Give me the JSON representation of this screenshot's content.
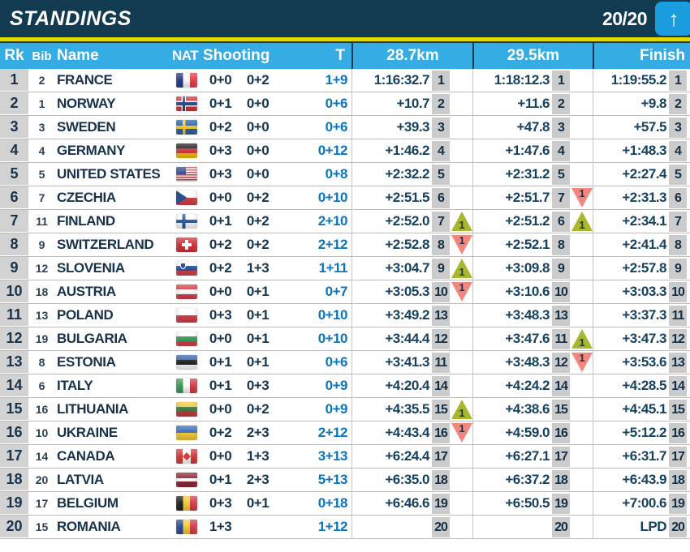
{
  "header": {
    "title": "STANDINGS",
    "progress": "20/20",
    "scroll_button_icon": "up-arrow"
  },
  "columns": {
    "rk": "Rk",
    "bib": "Bib",
    "name": "Name",
    "nat": "NAT",
    "shooting": "Shooting",
    "total": "T",
    "cp1": "28.7km",
    "cp2": "29.5km",
    "finish": "Finish"
  },
  "colors": {
    "topbar": "#123A50",
    "accent_yellow": "#DFDB00",
    "header_blue": "#35ACE4",
    "button_blue": "#1B9CDE",
    "rank_cell_gray": "#D2D2D2",
    "badge_gray": "#CBCBCB",
    "text_navy": "#17324A",
    "total_blue": "#0B76BC",
    "up_arrow_green": "#A9B72E",
    "down_arrow_red": "#F4867E"
  },
  "rows": [
    {
      "rank": "1",
      "bib": "2",
      "name": "FRANCE",
      "flag": "fr",
      "shoot1": "0+0",
      "shoot2": "0+2",
      "total": "1+9",
      "cp1": {
        "time": "1:16:32.7",
        "rank": "1",
        "change": null
      },
      "cp2": {
        "time": "1:18:12.3",
        "rank": "1",
        "change": null
      },
      "fin": {
        "time": "1:19:55.2",
        "rank": "1"
      }
    },
    {
      "rank": "2",
      "bib": "1",
      "name": "NORWAY",
      "flag": "no",
      "shoot1": "0+1",
      "shoot2": "0+0",
      "total": "0+6",
      "cp1": {
        "time": "+10.7",
        "rank": "2",
        "change": null
      },
      "cp2": {
        "time": "+11.6",
        "rank": "2",
        "change": null
      },
      "fin": {
        "time": "+9.8",
        "rank": "2"
      }
    },
    {
      "rank": "3",
      "bib": "3",
      "name": "SWEDEN",
      "flag": "se",
      "shoot1": "0+2",
      "shoot2": "0+0",
      "total": "0+6",
      "cp1": {
        "time": "+39.3",
        "rank": "3",
        "change": null
      },
      "cp2": {
        "time": "+47.8",
        "rank": "3",
        "change": null
      },
      "fin": {
        "time": "+57.5",
        "rank": "3"
      }
    },
    {
      "rank": "4",
      "bib": "4",
      "name": "GERMANY",
      "flag": "de",
      "shoot1": "0+3",
      "shoot2": "0+0",
      "total": "0+12",
      "cp1": {
        "time": "+1:46.2",
        "rank": "4",
        "change": null
      },
      "cp2": {
        "time": "+1:47.6",
        "rank": "4",
        "change": null
      },
      "fin": {
        "time": "+1:48.3",
        "rank": "4"
      }
    },
    {
      "rank": "5",
      "bib": "5",
      "name": "UNITED STATES",
      "flag": "us",
      "shoot1": "0+3",
      "shoot2": "0+0",
      "total": "0+8",
      "cp1": {
        "time": "+2:32.2",
        "rank": "5",
        "change": null
      },
      "cp2": {
        "time": "+2:31.2",
        "rank": "5",
        "change": null
      },
      "fin": {
        "time": "+2:27.4",
        "rank": "5"
      }
    },
    {
      "rank": "6",
      "bib": "7",
      "name": "CZECHIA",
      "flag": "cz",
      "shoot1": "0+0",
      "shoot2": "0+2",
      "total": "0+10",
      "cp1": {
        "time": "+2:51.5",
        "rank": "6",
        "change": null
      },
      "cp2": {
        "time": "+2:51.7",
        "rank": "7",
        "change": {
          "dir": "down",
          "n": "1"
        }
      },
      "fin": {
        "time": "+2:31.3",
        "rank": "6"
      }
    },
    {
      "rank": "7",
      "bib": "11",
      "name": "FINLAND",
      "flag": "fi",
      "shoot1": "0+1",
      "shoot2": "0+2",
      "total": "2+10",
      "cp1": {
        "time": "+2:52.0",
        "rank": "7",
        "change": {
          "dir": "up",
          "n": "1"
        }
      },
      "cp2": {
        "time": "+2:51.2",
        "rank": "6",
        "change": {
          "dir": "up",
          "n": "1"
        }
      },
      "fin": {
        "time": "+2:34.1",
        "rank": "7"
      }
    },
    {
      "rank": "8",
      "bib": "9",
      "name": "SWITZERLAND",
      "flag": "ch",
      "shoot1": "0+2",
      "shoot2": "0+2",
      "total": "2+12",
      "cp1": {
        "time": "+2:52.8",
        "rank": "8",
        "change": {
          "dir": "down",
          "n": "1"
        }
      },
      "cp2": {
        "time": "+2:52.1",
        "rank": "8",
        "change": null
      },
      "fin": {
        "time": "+2:41.4",
        "rank": "8"
      }
    },
    {
      "rank": "9",
      "bib": "12",
      "name": "SLOVENIA",
      "flag": "si",
      "shoot1": "0+2",
      "shoot2": "1+3",
      "total": "1+11",
      "cp1": {
        "time": "+3:04.7",
        "rank": "9",
        "change": {
          "dir": "up",
          "n": "1"
        }
      },
      "cp2": {
        "time": "+3:09.8",
        "rank": "9",
        "change": null
      },
      "fin": {
        "time": "+2:57.8",
        "rank": "9"
      }
    },
    {
      "rank": "10",
      "bib": "18",
      "name": "AUSTRIA",
      "flag": "at",
      "shoot1": "0+0",
      "shoot2": "0+1",
      "total": "0+7",
      "cp1": {
        "time": "+3:05.3",
        "rank": "10",
        "change": {
          "dir": "down",
          "n": "1"
        }
      },
      "cp2": {
        "time": "+3:10.6",
        "rank": "10",
        "change": null
      },
      "fin": {
        "time": "+3:03.3",
        "rank": "10"
      }
    },
    {
      "rank": "11",
      "bib": "13",
      "name": "POLAND",
      "flag": "pl",
      "shoot1": "0+3",
      "shoot2": "0+1",
      "total": "0+10",
      "cp1": {
        "time": "+3:49.2",
        "rank": "13",
        "change": null
      },
      "cp2": {
        "time": "+3:48.3",
        "rank": "13",
        "change": null
      },
      "fin": {
        "time": "+3:37.3",
        "rank": "11"
      }
    },
    {
      "rank": "12",
      "bib": "19",
      "name": "BULGARIA",
      "flag": "bg",
      "shoot1": "0+0",
      "shoot2": "0+1",
      "total": "0+10",
      "cp1": {
        "time": "+3:44.4",
        "rank": "12",
        "change": null
      },
      "cp2": {
        "time": "+3:47.6",
        "rank": "11",
        "change": {
          "dir": "up",
          "n": "1"
        }
      },
      "fin": {
        "time": "+3:47.3",
        "rank": "12"
      }
    },
    {
      "rank": "13",
      "bib": "8",
      "name": "ESTONIA",
      "flag": "ee",
      "shoot1": "0+1",
      "shoot2": "0+1",
      "total": "0+6",
      "cp1": {
        "time": "+3:41.3",
        "rank": "11",
        "change": null
      },
      "cp2": {
        "time": "+3:48.3",
        "rank": "12",
        "change": {
          "dir": "down",
          "n": "1"
        }
      },
      "fin": {
        "time": "+3:53.6",
        "rank": "13"
      }
    },
    {
      "rank": "14",
      "bib": "6",
      "name": "ITALY",
      "flag": "it",
      "shoot1": "0+1",
      "shoot2": "0+3",
      "total": "0+9",
      "cp1": {
        "time": "+4:20.4",
        "rank": "14",
        "change": null
      },
      "cp2": {
        "time": "+4:24.2",
        "rank": "14",
        "change": null
      },
      "fin": {
        "time": "+4:28.5",
        "rank": "14"
      }
    },
    {
      "rank": "15",
      "bib": "16",
      "name": "LITHUANIA",
      "flag": "lt",
      "shoot1": "0+0",
      "shoot2": "0+2",
      "total": "0+9",
      "cp1": {
        "time": "+4:35.5",
        "rank": "15",
        "change": {
          "dir": "up",
          "n": "1"
        }
      },
      "cp2": {
        "time": "+4:38.6",
        "rank": "15",
        "change": null
      },
      "fin": {
        "time": "+4:45.1",
        "rank": "15"
      }
    },
    {
      "rank": "16",
      "bib": "10",
      "name": "UKRAINE",
      "flag": "ua",
      "shoot1": "0+2",
      "shoot2": "2+3",
      "total": "2+12",
      "cp1": {
        "time": "+4:43.4",
        "rank": "16",
        "change": {
          "dir": "down",
          "n": "1"
        }
      },
      "cp2": {
        "time": "+4:59.0",
        "rank": "16",
        "change": null
      },
      "fin": {
        "time": "+5:12.2",
        "rank": "16"
      }
    },
    {
      "rank": "17",
      "bib": "14",
      "name": "CANADA",
      "flag": "ca",
      "shoot1": "0+0",
      "shoot2": "1+3",
      "total": "3+13",
      "cp1": {
        "time": "+6:24.4",
        "rank": "17",
        "change": null
      },
      "cp2": {
        "time": "+6:27.1",
        "rank": "17",
        "change": null
      },
      "fin": {
        "time": "+6:31.7",
        "rank": "17"
      }
    },
    {
      "rank": "18",
      "bib": "20",
      "name": "LATVIA",
      "flag": "lv",
      "shoot1": "0+1",
      "shoot2": "2+3",
      "total": "5+13",
      "cp1": {
        "time": "+6:35.0",
        "rank": "18",
        "change": null
      },
      "cp2": {
        "time": "+6:37.2",
        "rank": "18",
        "change": null
      },
      "fin": {
        "time": "+6:43.9",
        "rank": "18"
      }
    },
    {
      "rank": "19",
      "bib": "17",
      "name": "BELGIUM",
      "flag": "be",
      "shoot1": "0+3",
      "shoot2": "0+1",
      "total": "0+18",
      "cp1": {
        "time": "+6:46.6",
        "rank": "19",
        "change": null
      },
      "cp2": {
        "time": "+6:50.5",
        "rank": "19",
        "change": null
      },
      "fin": {
        "time": "+7:00.6",
        "rank": "19"
      }
    },
    {
      "rank": "20",
      "bib": "15",
      "name": "ROMANIA",
      "flag": "ro",
      "shoot1": "1+3",
      "shoot2": "",
      "total": "1+12",
      "cp1": {
        "time": "",
        "rank": "20",
        "change": null
      },
      "cp2": {
        "time": "",
        "rank": "20",
        "change": null
      },
      "fin": {
        "time": "LPD",
        "rank": "20"
      }
    }
  ]
}
